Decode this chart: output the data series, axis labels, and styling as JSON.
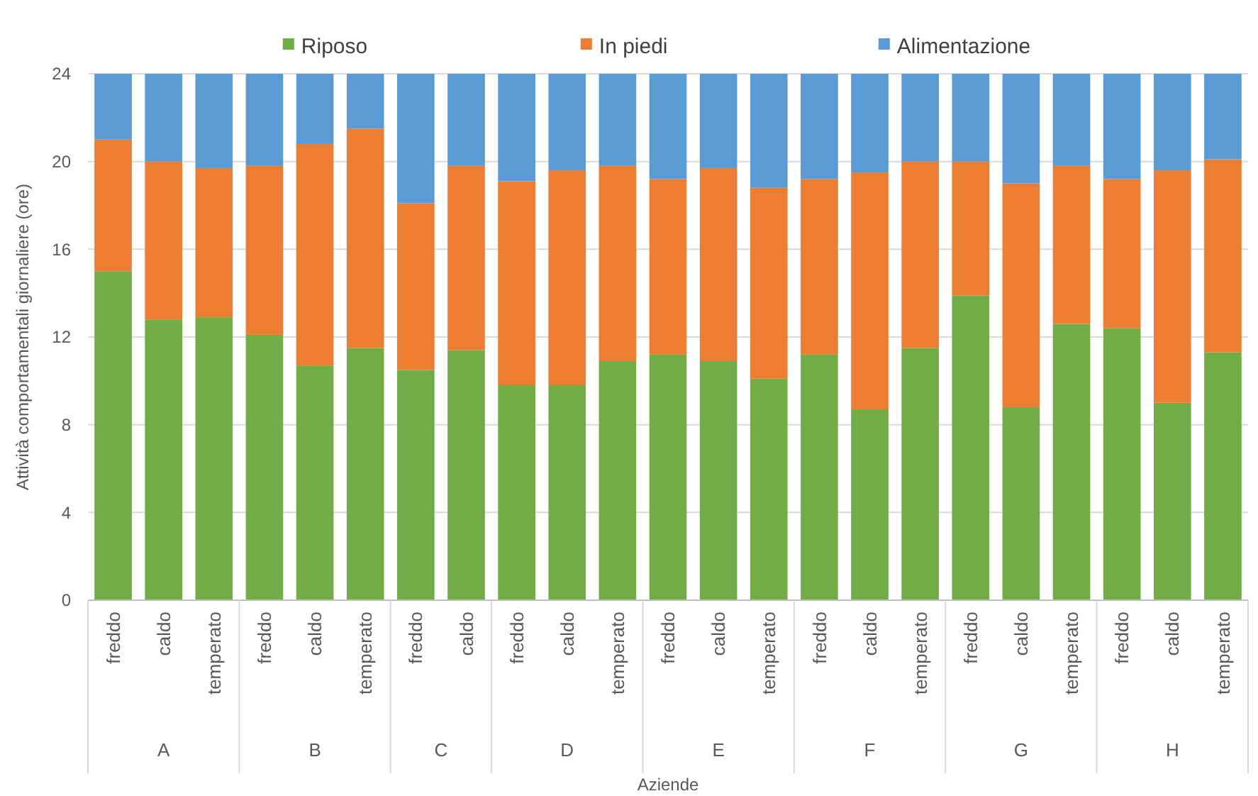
{
  "chart_data": {
    "type": "bar",
    "stacked": true,
    "xlabel": "Aziende",
    "ylabel": "Attività comportamentali giornaliere (ore)",
    "categories": [
      "freddo",
      "caldo",
      "temperato",
      "freddo",
      "caldo",
      "temperato",
      "freddo",
      "caldo",
      "freddo",
      "caldo",
      "temperato",
      "freddo",
      "caldo",
      "temperato",
      "freddo",
      "caldo",
      "temperato",
      "freddo",
      "caldo",
      "temperato",
      "freddo",
      "caldo",
      "temperato"
    ],
    "annotations": [
      "A",
      "B",
      "C",
      "D",
      "E",
      "F",
      "G",
      "H"
    ],
    "series": [
      {
        "name": "Riposo",
        "color": "#70ad47",
        "values": [
          15.0,
          12.8,
          12.9,
          12.1,
          10.7,
          11.5,
          10.5,
          11.4,
          9.8,
          9.8,
          10.9,
          11.2,
          10.9,
          10.1,
          11.2,
          8.7,
          11.5,
          13.9,
          8.8,
          12.6,
          12.4,
          9.0,
          11.3
        ]
      },
      {
        "name": "In piedi",
        "color": "#ed7d31",
        "values": [
          6.0,
          7.2,
          6.8,
          7.7,
          10.1,
          10.0,
          7.6,
          8.4,
          9.3,
          9.8,
          8.9,
          8.0,
          8.8,
          8.7,
          8.0,
          10.8,
          8.5,
          6.1,
          10.2,
          7.2,
          6.8,
          10.6,
          8.8
        ]
      },
      {
        "name": "Alimentazione",
        "color": "#5b9bd5",
        "values": [
          3.0,
          4.0,
          4.3,
          4.2,
          3.2,
          2.5,
          5.9,
          4.2,
          4.9,
          4.4,
          4.2,
          4.8,
          4.3,
          5.2,
          4.8,
          4.5,
          4.0,
          4.0,
          5.0,
          4.2,
          4.8,
          4.4,
          3.9
        ]
      }
    ],
    "ylim": [
      0,
      24
    ],
    "yticks": [
      0,
      4,
      8,
      12,
      16,
      20,
      24
    ],
    "grid": "y",
    "legend": "top"
  }
}
